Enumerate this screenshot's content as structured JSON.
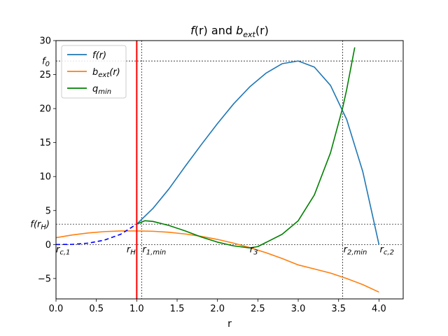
{
  "chart_data": {
    "type": "line",
    "title": "f(r) and b_ext(r)",
    "title_parts": {
      "f": "f",
      "r1": "(r)",
      "and": " and ",
      "b": "b",
      "sub": "ext",
      "r2": "(r)"
    },
    "xlabel": "r",
    "ylabel": "",
    "xlim": [
      0,
      4.3
    ],
    "ylim": [
      -8,
      30
    ],
    "xticks": [
      0.0,
      0.5,
      1.0,
      1.5,
      2.0,
      2.5,
      3.0,
      3.5,
      4.0
    ],
    "xtick_labels": [
      "0.0",
      "0.5",
      "1.0",
      "1.5",
      "2.0",
      "2.5",
      "3.0",
      "3.5",
      "4.0"
    ],
    "yticks": [
      -5,
      0,
      5,
      10,
      15,
      20,
      25,
      30
    ],
    "ytick_labels": [
      "−5",
      "0",
      "5",
      "10",
      "15",
      "20",
      "25",
      "30"
    ],
    "grid": false,
    "legend_position": "top-left",
    "colors": {
      "f": "#1f77b4",
      "b": "#ff7f0e",
      "q": "#008000",
      "rH_line": "#ff0000",
      "dashed": "#0000ff",
      "ref": "#000000"
    },
    "series": [
      {
        "key": "f",
        "legend": {
          "main": "f",
          "sub": "",
          "suffix": "(r)"
        },
        "x": [
          1.0,
          1.2,
          1.4,
          1.6,
          1.8,
          2.0,
          2.2,
          2.4,
          2.6,
          2.8,
          3.0,
          3.2,
          3.4,
          3.6,
          3.8,
          4.0
        ],
        "y": [
          3.0,
          5.3,
          8.2,
          11.5,
          14.7,
          17.8,
          20.7,
          23.2,
          25.2,
          26.6,
          27.0,
          26.1,
          23.4,
          18.4,
          10.7,
          0.0
        ]
      },
      {
        "key": "b",
        "legend": {
          "main": "b",
          "sub": "ext",
          "suffix": "(r)"
        },
        "x": [
          0.0,
          0.2,
          0.4,
          0.6,
          0.8,
          1.0,
          1.2,
          1.4,
          1.6,
          1.8,
          2.0,
          2.2,
          2.4,
          2.6,
          2.8,
          3.0,
          3.2,
          3.4,
          3.6,
          3.8,
          4.0
        ],
        "y": [
          1.0,
          1.4,
          1.7,
          1.9,
          2.0,
          2.0,
          1.95,
          1.8,
          1.55,
          1.2,
          0.75,
          0.2,
          -0.45,
          -1.2,
          -2.05,
          -3.0,
          -3.6,
          -4.2,
          -5.0,
          -5.9,
          -7.0
        ]
      },
      {
        "key": "q",
        "legend": {
          "main": "q",
          "sub": "min",
          "suffix": ""
        },
        "x": [
          1.0,
          1.1,
          1.2,
          1.4,
          1.6,
          1.8,
          2.0,
          2.2,
          2.4,
          2.5,
          2.6,
          2.8,
          3.0,
          3.2,
          3.4,
          3.55,
          3.6,
          3.7
        ],
        "y": [
          3.0,
          3.5,
          3.4,
          2.8,
          2.0,
          1.1,
          0.35,
          -0.2,
          -0.5,
          -0.3,
          0.3,
          1.5,
          3.5,
          7.3,
          13.5,
          20.1,
          22.8,
          29.0
        ]
      }
    ],
    "dashed_f_inside": {
      "x": [
        0.0,
        0.2,
        0.4,
        0.6,
        0.8,
        1.0
      ],
      "y": [
        0.0,
        0.02,
        0.2,
        0.65,
        1.5,
        3.0
      ]
    },
    "vertical_line_rH": {
      "x": 1.0
    },
    "reference_lines": {
      "vertical_x": [
        1.06,
        3.55
      ],
      "horizontal_y": [
        0,
        3.0,
        27.0
      ]
    },
    "annotations": [
      {
        "main": "r",
        "sub": "c,1",
        "x": 0.0,
        "y": 0,
        "anchor": "start"
      },
      {
        "main": "r",
        "sub": "H",
        "x": 0.93,
        "y": 0,
        "anchor": "middle"
      },
      {
        "main": "r",
        "sub": "1,min",
        "x": 1.07,
        "y": 0,
        "anchor": "start"
      },
      {
        "main": "r",
        "sub": "3",
        "x": 2.45,
        "y": 0,
        "anchor": "middle"
      },
      {
        "main": "r",
        "sub": "2,min",
        "x": 3.56,
        "y": 0,
        "anchor": "start"
      },
      {
        "main": "r",
        "sub": "c,2",
        "x": 4.01,
        "y": 0,
        "anchor": "start"
      }
    ],
    "y_annotations": [
      {
        "main": "f",
        "sub": "0",
        "y": 27.0
      },
      {
        "main": "f(r",
        "sub": "H",
        "suffix": ")",
        "y": 3.0
      }
    ]
  }
}
